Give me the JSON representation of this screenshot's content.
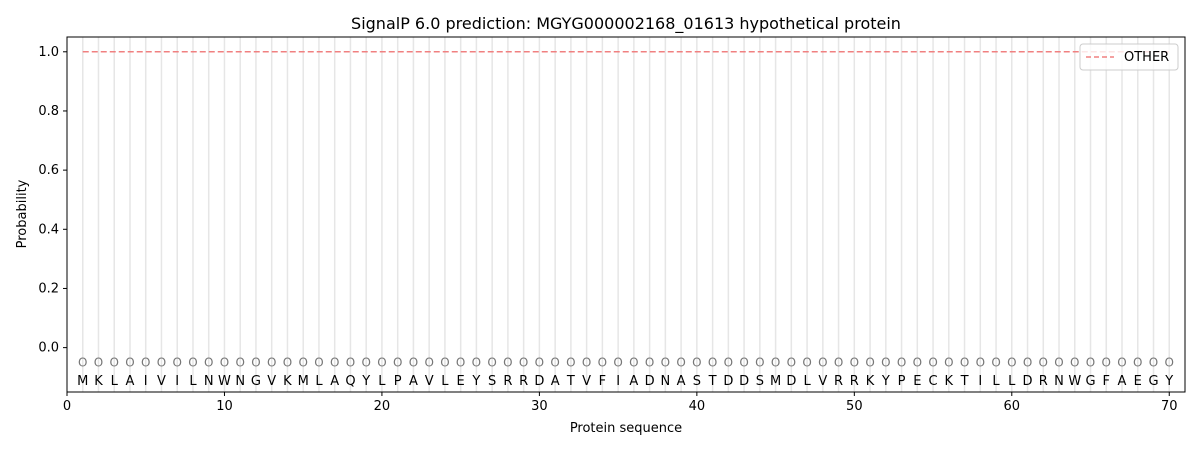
{
  "chart_data": {
    "type": "line",
    "title": "SignalP 6.0 prediction: MGYG000002168_01613 hypothetical protein",
    "xlabel": "Protein sequence",
    "ylabel": "Probability",
    "xlim": [
      0,
      71
    ],
    "ylim": [
      -0.15,
      1.05
    ],
    "xticks": [
      0,
      10,
      20,
      30,
      40,
      50,
      60,
      70
    ],
    "yticks": [
      0.0,
      0.2,
      0.4,
      0.6,
      0.8,
      1.0
    ],
    "ytick_labels": [
      "0.0",
      "0.2",
      "0.4",
      "0.6",
      "0.8",
      "1.0"
    ],
    "grid": "vertical lines at each residue",
    "legend_position": "top-right",
    "sequence": [
      "M",
      "K",
      "L",
      "A",
      "I",
      "V",
      "I",
      "L",
      "N",
      "W",
      "N",
      "G",
      "V",
      "K",
      "M",
      "L",
      "A",
      "Q",
      "Y",
      "L",
      "P",
      "A",
      "V",
      "L",
      "E",
      "Y",
      "S",
      "R",
      "R",
      "D",
      "A",
      "T",
      "V",
      "F",
      "I",
      "A",
      "D",
      "N",
      "A",
      "S",
      "T",
      "D",
      "D",
      "S",
      "M",
      "D",
      "L",
      "V",
      "R",
      "R",
      "K",
      "Y",
      "P",
      "E",
      "C",
      "K",
      "T",
      "I",
      "L",
      "L",
      "D",
      "R",
      "N",
      "W",
      "G",
      "F",
      "A",
      "E",
      "G",
      "Y"
    ],
    "predicted_labels": "OOOOOOOOOOOOOOOOOOOOOOOOOOOOOOOOOOOOOOOOOOOOOOOOOOOOOOOOOOOOOOOOOOOOOO",
    "series": [
      {
        "name": "OTHER",
        "color": "#f08080",
        "style": "dashed",
        "x_range": [
          1,
          70
        ],
        "value": 1.0
      }
    ]
  }
}
